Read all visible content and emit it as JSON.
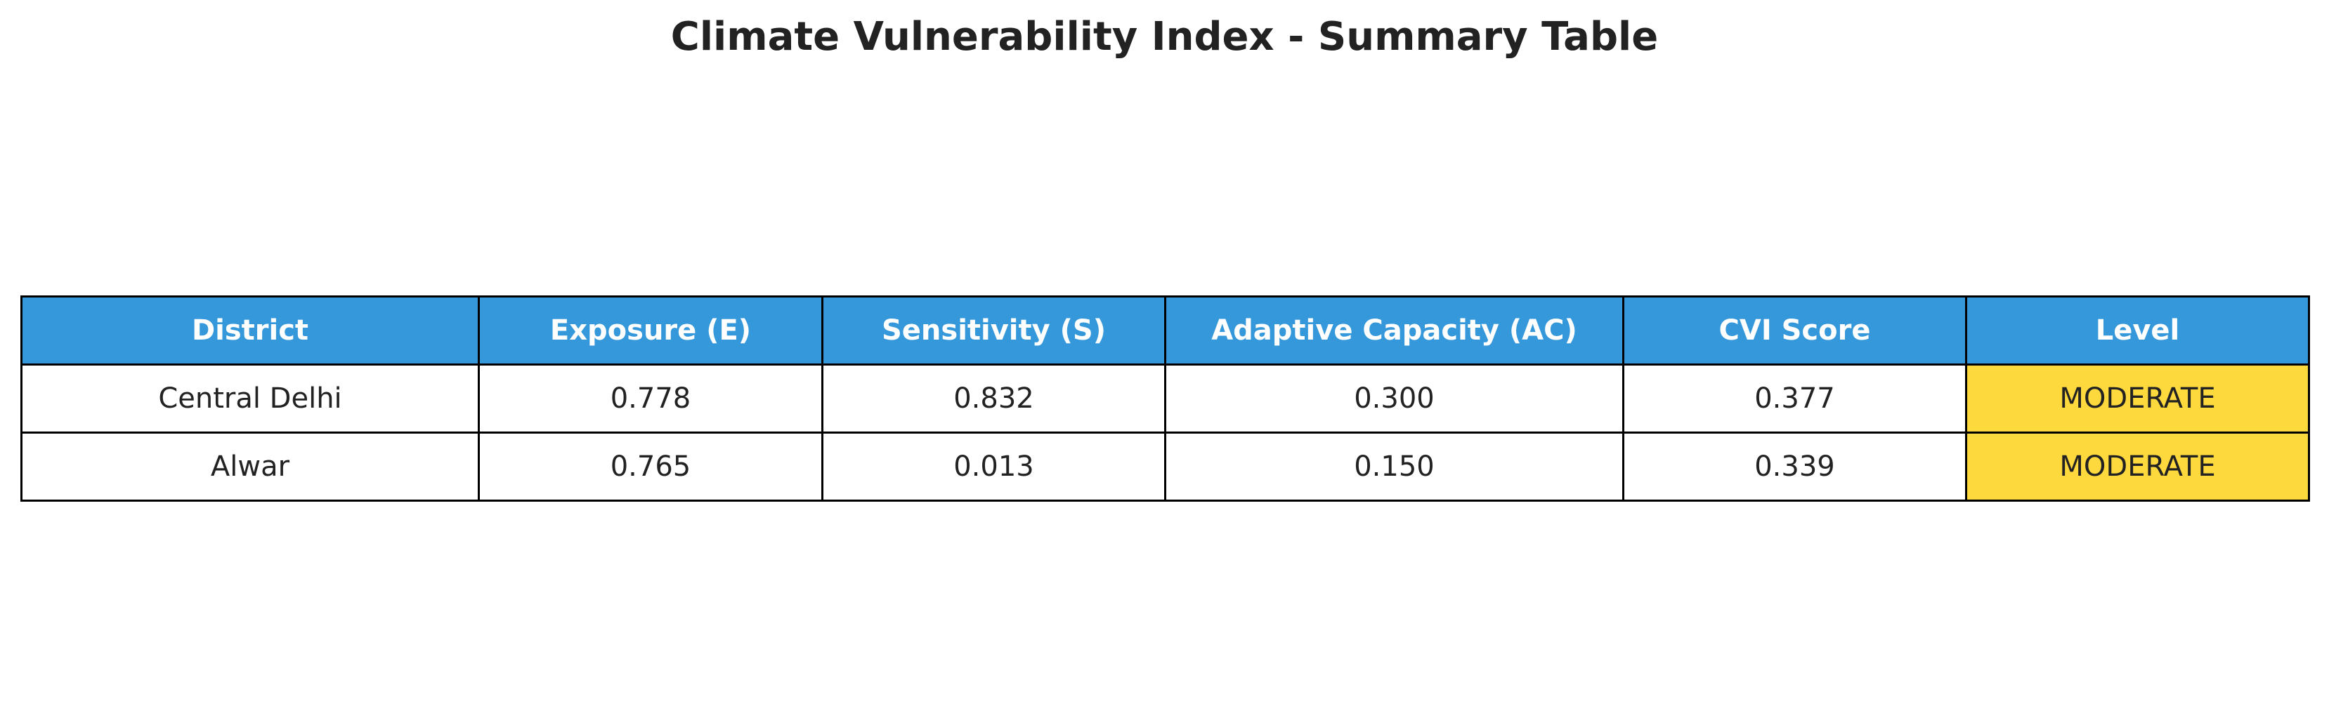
{
  "title": "Climate Vulnerability Index - Summary Table",
  "chart_data": {
    "type": "table",
    "title": "Climate Vulnerability Index - Summary Table",
    "columns": [
      "District",
      "Exposure (E)",
      "Sensitivity (S)",
      "Adaptive Capacity (AC)",
      "CVI Score",
      "Level"
    ],
    "rows": [
      [
        "Central Delhi",
        "0.778",
        "0.832",
        "0.300",
        "0.377",
        "MODERATE"
      ],
      [
        "Alwar",
        "0.765",
        "0.013",
        "0.150",
        "0.339",
        "MODERATE"
      ]
    ],
    "colors": {
      "header_background": "#3498db",
      "header_text": "#ffffff",
      "level_moderate": "#fdd93d"
    }
  }
}
